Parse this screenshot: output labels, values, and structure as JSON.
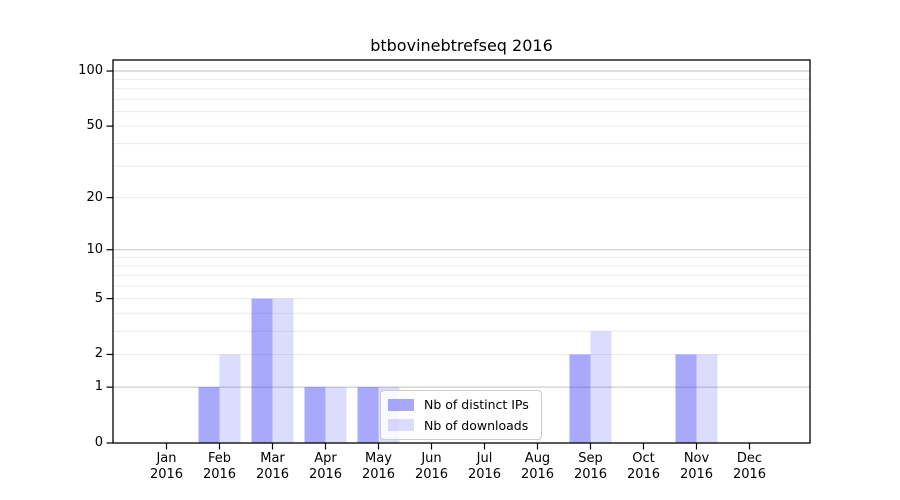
{
  "chart_data": {
    "type": "bar",
    "title": "btbovinebtrefseq 2016",
    "categories": [
      "Jan 2016",
      "Feb 2016",
      "Mar 2016",
      "Apr 2016",
      "May 2016",
      "Jun 2016",
      "Jul 2016",
      "Aug 2016",
      "Sep 2016",
      "Oct 2016",
      "Nov 2016",
      "Dec 2016"
    ],
    "x_tick_labels": [
      [
        "Jan",
        "2016"
      ],
      [
        "Feb",
        "2016"
      ],
      [
        "Mar",
        "2016"
      ],
      [
        "Apr",
        "2016"
      ],
      [
        "May",
        "2016"
      ],
      [
        "Jun",
        "2016"
      ],
      [
        "Jul",
        "2016"
      ],
      [
        "Aug",
        "2016"
      ],
      [
        "Sep",
        "2016"
      ],
      [
        "Oct",
        "2016"
      ],
      [
        "Nov",
        "2016"
      ],
      [
        "Dec",
        "2016"
      ]
    ],
    "series": [
      {
        "name": "Nb of distinct IPs",
        "fill": "rgba(60,60,245,0.44)",
        "solid_hex": "#a8a8f8",
        "values": [
          0,
          1,
          5,
          1,
          1,
          0,
          0,
          0,
          2,
          0,
          2,
          0
        ]
      },
      {
        "name": "Nb of downloads",
        "fill": "rgba(60,60,245,0.18)",
        "solid_hex": "#dcdcfb",
        "values": [
          0,
          2,
          5,
          1,
          1,
          0,
          0,
          0,
          3,
          0,
          2,
          0
        ]
      }
    ],
    "y_axis": {
      "scale": "log1p",
      "tick_values": [
        0,
        1,
        2,
        5,
        10,
        20,
        50,
        100
      ],
      "major_gridlines": [
        1,
        10,
        100
      ],
      "minor_gridlines": [
        2,
        3,
        4,
        5,
        6,
        7,
        8,
        9,
        20,
        30,
        40,
        50,
        60,
        70,
        80,
        90
      ],
      "top_value": 115
    },
    "x_axis": {
      "tick_count": 12
    },
    "legend": {
      "position": "lower center",
      "entries": [
        "Nb of distinct IPs",
        "Nb of downloads"
      ]
    },
    "grid": true
  },
  "colors": {
    "background": "#ffffff",
    "axis": "#000000",
    "major_grid": "#c2c2c2",
    "minor_grid": "#ececec",
    "legend_border": "#cccccc",
    "bar_distinct_ips": "#a8a8f8",
    "bar_downloads": "#dcdcfb"
  }
}
